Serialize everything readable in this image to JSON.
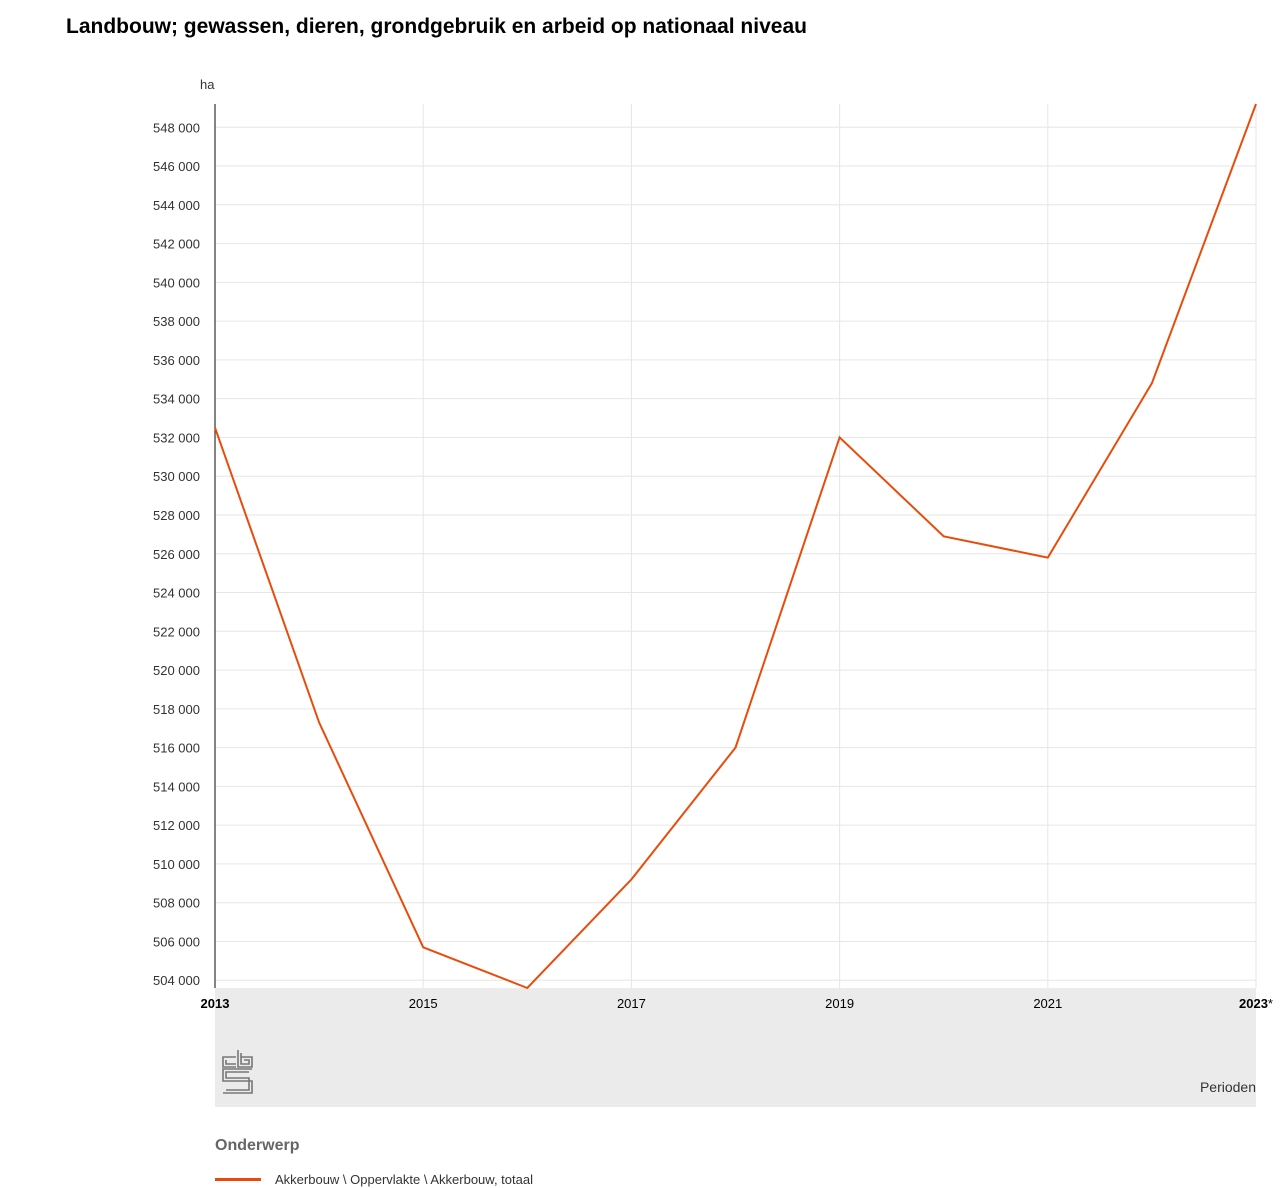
{
  "title": "Landbouw; gewassen, dieren, grondgebruik en arbeid op nationaal niveau",
  "legend": {
    "heading": "Onderwerp",
    "items": [
      {
        "label": "Akkerbouw \\ Oppervlakte \\ Akkerbouw, totaal",
        "color": "#e94c0a"
      }
    ]
  },
  "chart_data": {
    "type": "line",
    "title": "Landbouw; gewassen, dieren, grondgebruik en arbeid op nationaal niveau",
    "ylabel": "ha",
    "xlabel": "Perioden",
    "x": [
      "2013",
      "2014",
      "2015",
      "2016",
      "2017",
      "2018",
      "2019",
      "2020",
      "2021",
      "2022",
      "2023*"
    ],
    "x_tick_labels": [
      {
        "label": "2013",
        "bold": true
      },
      {
        "label": "2015",
        "bold": false
      },
      {
        "label": "2017",
        "bold": false
      },
      {
        "label": "2019",
        "bold": false
      },
      {
        "label": "2021",
        "bold": false
      },
      {
        "label": "2023*",
        "bold": true
      }
    ],
    "series": [
      {
        "name": "Akkerbouw \\ Oppervlakte \\ Akkerbouw, totaal",
        "color": "#e94c0a",
        "values": [
          532500,
          517300,
          505700,
          503600,
          509200,
          516000,
          532000,
          526900,
          525800,
          534800,
          549200
        ]
      }
    ],
    "ylim": [
      503600,
      549200
    ],
    "y_ticks": [
      504000,
      506000,
      508000,
      510000,
      512000,
      514000,
      516000,
      518000,
      520000,
      522000,
      524000,
      526000,
      528000,
      530000,
      532000,
      534000,
      536000,
      538000,
      540000,
      542000,
      544000,
      546000,
      548000
    ],
    "y_tick_labels": [
      "504 000",
      "506 000",
      "508 000",
      "510 000",
      "512 000",
      "514 000",
      "516 000",
      "518 000",
      "520 000",
      "522 000",
      "524 000",
      "526 000",
      "528 000",
      "530 000",
      "532 000",
      "534 000",
      "536 000",
      "538 000",
      "540 000",
      "542 000",
      "544 000",
      "546 000",
      "548 000"
    ],
    "grid": true,
    "legend_position": "bottom"
  },
  "colors": {
    "grid": "#e6e6e6",
    "axis_band": "#ebebeb",
    "axis_line": "#333333",
    "logo": "#777777"
  }
}
